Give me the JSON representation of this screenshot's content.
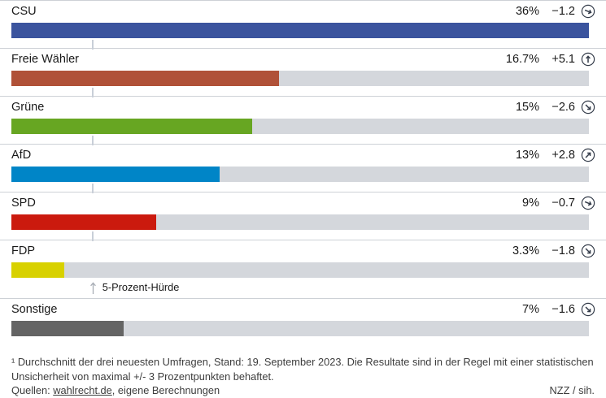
{
  "chart_data": {
    "type": "bar",
    "orientation": "horizontal",
    "title": "",
    "xlim": [
      0,
      36
    ],
    "grid": false,
    "legend": "none",
    "categories": [
      "CSU",
      "Freie Wähler",
      "Grüne",
      "AfD",
      "SPD",
      "FDP",
      "Sonstige"
    ],
    "values": [
      36,
      16.7,
      15,
      13,
      9,
      3.3,
      7
    ],
    "changes": [
      -1.2,
      5.1,
      -2.6,
      2.8,
      -0.7,
      -1.8,
      -1.6
    ],
    "track_color": "#d4d7dc",
    "icon_color": "#333b49",
    "threshold": {
      "value": 5,
      "label": "5-Prozent-Hürde"
    },
    "rows": [
      {
        "label": "CSU",
        "value": 36,
        "value_label": "36%",
        "change_label": "−1.2",
        "trend": "slight-down",
        "color": "#3b549e",
        "threshold_tick": true
      },
      {
        "label": "Freie Wähler",
        "value": 16.7,
        "value_label": "16.7%",
        "change_label": "+5.1",
        "trend": "up",
        "color": "#b05138",
        "threshold_tick": true
      },
      {
        "label": "Grüne",
        "value": 15,
        "value_label": "15%",
        "change_label": "−2.6",
        "trend": "down",
        "color": "#67a622",
        "threshold_tick": true
      },
      {
        "label": "AfD",
        "value": 13,
        "value_label": "13%",
        "change_label": "+2.8",
        "trend": "up-right",
        "color": "#0085c7",
        "threshold_tick": true
      },
      {
        "label": "SPD",
        "value": 9,
        "value_label": "9%",
        "change_label": "−0.7",
        "trend": "slight-down",
        "color": "#cb1a0e",
        "threshold_tick": true
      },
      {
        "label": "FDP",
        "value": 3.3,
        "value_label": "3.3%",
        "change_label": "−1.8",
        "trend": "down",
        "color": "#d8d100",
        "threshold_tick": false
      },
      {
        "label": "Sonstige",
        "value": 7,
        "value_label": "7%",
        "change_label": "−1.6",
        "trend": "down",
        "color": "#646464",
        "threshold_tick": false
      }
    ]
  },
  "footnote": {
    "note": "¹ Durchschnitt der drei neuesten Umfragen, Stand: 19. September 2023. Die Resultate sind in der Regel mit einer statistischen Unsicherheit von maximal +/- 3 Prozentpunkten behaftet.",
    "sources_prefix": "Quellen: ",
    "source_link": "wahlrecht.de",
    "sources_suffix": ", eigene Berechnungen",
    "credit": "NZZ / sih."
  }
}
